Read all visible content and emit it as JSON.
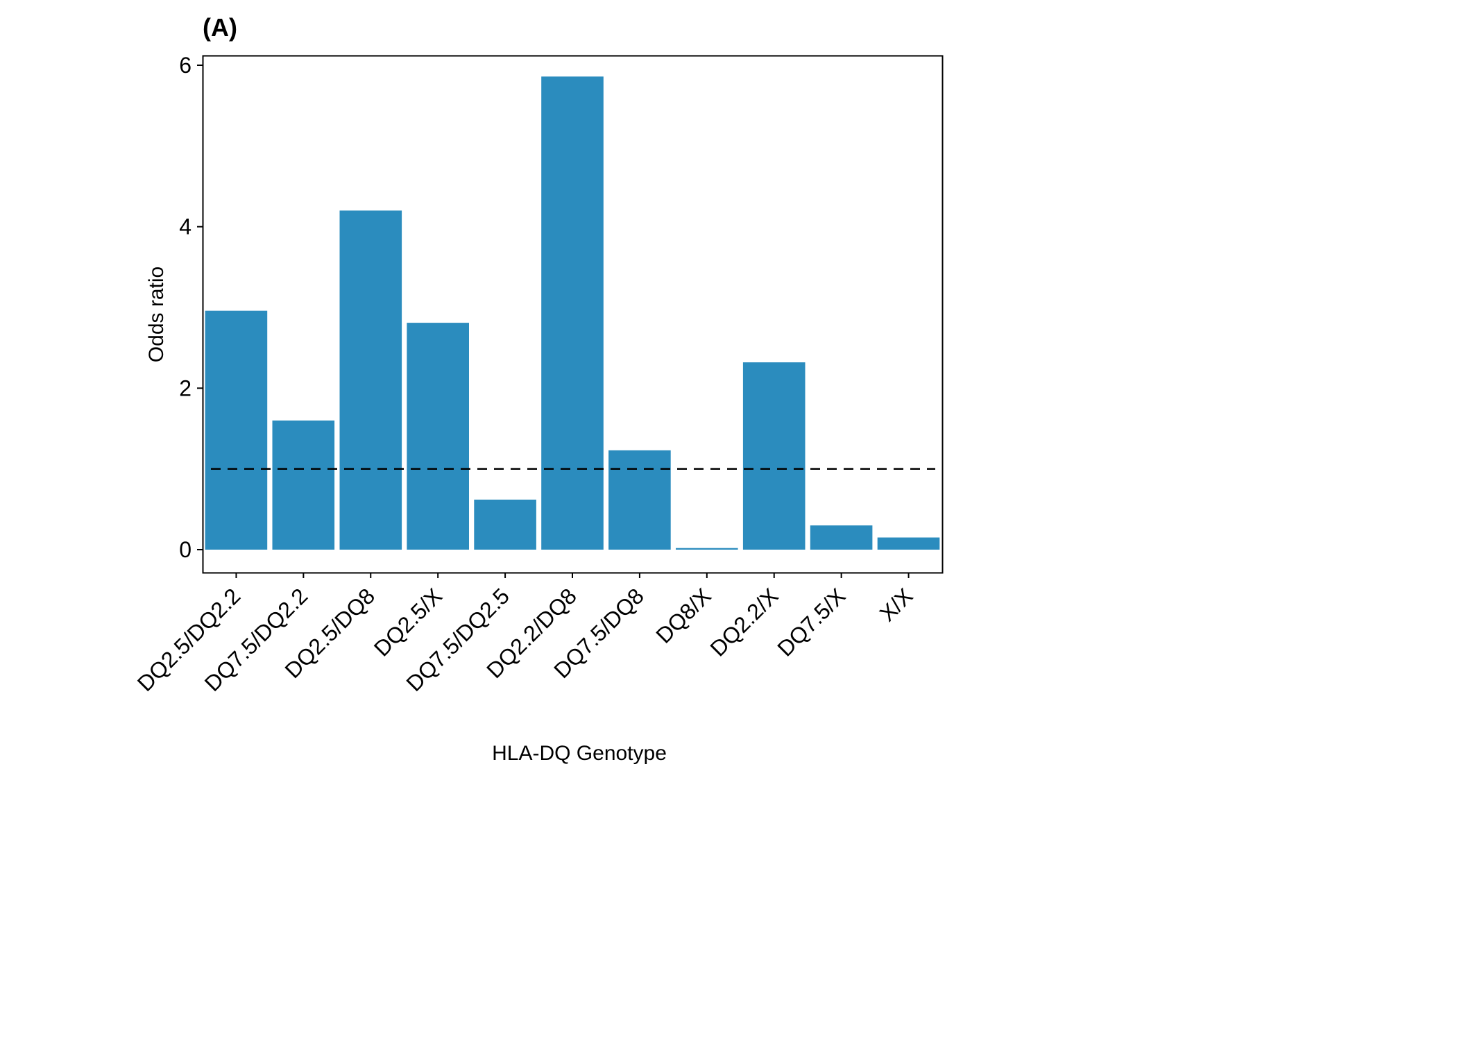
{
  "chart_data": {
    "type": "bar",
    "panel_label": "(A)",
    "xlabel": "HLA-DQ Genotype",
    "ylabel": "Odds ratio",
    "categories": [
      "DQ2.5/DQ2.2",
      "DQ7.5/DQ2.2",
      "DQ2.5/DQ8",
      "DQ2.5/X",
      "DQ7.5/DQ2.5",
      "DQ2.2/DQ8",
      "DQ7.5/DQ8",
      "DQ8/X",
      "DQ2.2/X",
      "DQ7.5/X",
      "X/X"
    ],
    "values": [
      2.96,
      1.6,
      4.2,
      2.81,
      0.62,
      5.86,
      1.23,
      0.02,
      2.32,
      0.3,
      0.15
    ],
    "y_ticks": [
      0,
      2,
      4,
      6
    ],
    "ylim": [
      -0.29,
      6.15
    ],
    "reference_line": 1,
    "grid": false,
    "bar_color": "#2b8cbe"
  }
}
